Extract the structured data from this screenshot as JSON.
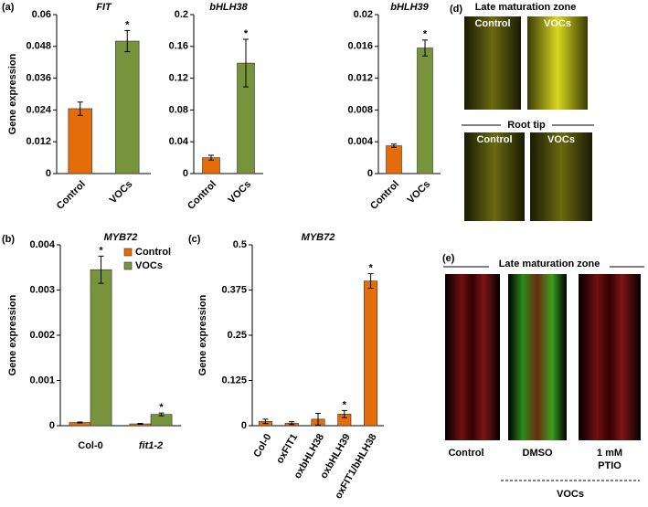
{
  "chart_data": [
    {
      "type": "bar",
      "panel": "(a)",
      "title": "FIT",
      "ylabel": "Gene expression",
      "categories": [
        "Control",
        "VOCs"
      ],
      "values": [
        0.0245,
        0.05
      ],
      "errors": [
        0.0025,
        0.004
      ],
      "colors": [
        "#e46c0a",
        "#77933c"
      ],
      "significant": [
        false,
        true
      ],
      "significance_label": "*",
      "ylim": [
        0,
        0.06
      ],
      "yticks": [
        0,
        0.012,
        0.024,
        0.036,
        0.048,
        0.06
      ]
    },
    {
      "type": "bar",
      "title": "bHLH38",
      "categories": [
        "Control",
        "VOCs"
      ],
      "values": [
        0.02,
        0.139
      ],
      "errors": [
        0.003,
        0.03
      ],
      "colors": [
        "#e46c0a",
        "#77933c"
      ],
      "significant": [
        false,
        true
      ],
      "significance_label": "*",
      "ylim": [
        0,
        0.2
      ],
      "yticks": [
        0,
        0.04,
        0.08,
        0.12,
        0.16,
        0.2
      ]
    },
    {
      "type": "bar",
      "title": "bHLH39",
      "categories": [
        "Control",
        "VOCs"
      ],
      "values": [
        0.0035,
        0.0158
      ],
      "errors": [
        0.0002,
        0.001
      ],
      "colors": [
        "#e46c0a",
        "#77933c"
      ],
      "significant": [
        false,
        true
      ],
      "significance_label": "*",
      "ylim": [
        0,
        0.02
      ],
      "yticks": [
        0,
        0.004,
        0.008,
        0.012,
        0.016,
        0.02
      ]
    },
    {
      "type": "grouped-bar",
      "panel": "(b)",
      "title": "MYB72",
      "ylabel": "Gene expression",
      "categories": [
        "Col-0",
        "fit1-2"
      ],
      "legend": "top-right",
      "significance_label": "*",
      "series": [
        {
          "name": "Control",
          "color": "#e46c0a",
          "values": [
            7e-05,
            4e-05
          ],
          "errors": [
            1e-05,
            1e-05
          ],
          "significant": [
            false,
            false
          ]
        },
        {
          "name": "VOCs",
          "color": "#77933c",
          "values": [
            0.00345,
            0.00025
          ],
          "errors": [
            0.0003,
            3e-05
          ],
          "significant": [
            true,
            true
          ]
        }
      ],
      "ylim": [
        0,
        0.004
      ],
      "yticks": [
        0,
        0.001,
        0.002,
        0.003,
        0.004
      ]
    },
    {
      "type": "bar",
      "panel": "(c)",
      "title": "MYB72",
      "ylabel": "Gene expression",
      "categories": [
        "Col-0",
        "oxFIT1",
        "oxbHLH38",
        "oxbHLH39",
        "oxFIT1/bHLH38"
      ],
      "values": [
        0.012,
        0.007,
        0.018,
        0.032,
        0.4
      ],
      "errors": [
        0.006,
        0.004,
        0.016,
        0.01,
        0.02
      ],
      "colors": [
        "#e46c0a",
        "#e46c0a",
        "#e46c0a",
        "#e46c0a",
        "#e46c0a"
      ],
      "significant": [
        false,
        false,
        false,
        true,
        true
      ],
      "significance_label": "*",
      "ylim": [
        0,
        0.5
      ],
      "yticks": [
        0,
        0.125,
        0.25,
        0.375,
        0.5
      ]
    }
  ],
  "microscopy": {
    "d": {
      "panel": "(d)",
      "zone": "Late maturation zone",
      "tip": "Root tip",
      "control": "Control",
      "vocs": "VOCs"
    },
    "e": {
      "panel": "(e)",
      "zone": "Late maturation zone",
      "labels": [
        "Control",
        "DMSO",
        "1 mM",
        "PTIO"
      ],
      "treatment": "VOCs"
    }
  }
}
